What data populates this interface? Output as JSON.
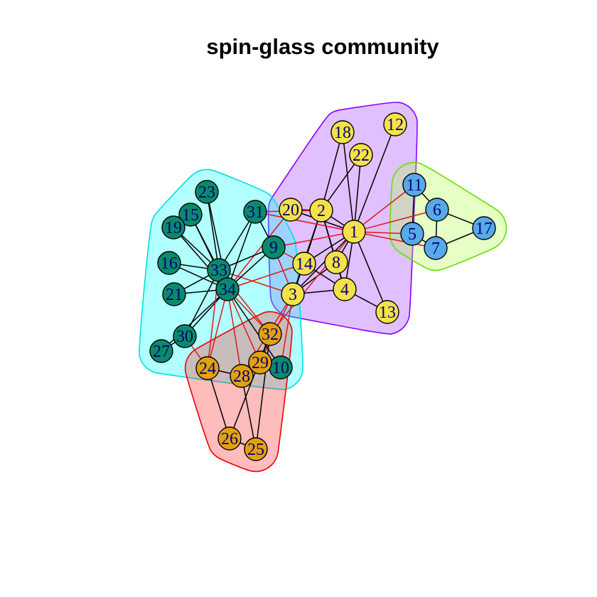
{
  "title": "spin-glass community",
  "colors": {
    "yellow": "#f5e14a",
    "teal": "#0a8a6a",
    "blue": "#58a9e8",
    "orange": "#e4a010",
    "intra_edge": "#000000",
    "inter_edge": "#e0171b"
  },
  "communities": [
    {
      "name": "community-purple",
      "fill": "#9b30ff",
      "stroke": "#8a00ff",
      "members": [
        1,
        2,
        3,
        4,
        8,
        12,
        13,
        14,
        18,
        20,
        22
      ]
    },
    {
      "name": "community-green",
      "fill": "#a8ff40",
      "stroke": "#66e000",
      "members": [
        5,
        6,
        7,
        11,
        17
      ]
    },
    {
      "name": "community-cyan",
      "fill": "#00ffff",
      "stroke": "#00e0e0",
      "members": [
        9,
        10,
        15,
        16,
        19,
        21,
        23,
        27,
        30,
        31,
        33,
        34
      ]
    },
    {
      "name": "community-red",
      "fill": "#ff2020",
      "stroke": "#ee0000",
      "members": [
        24,
        25,
        26,
        28,
        29,
        32
      ]
    }
  ],
  "nodes": [
    {
      "id": 1,
      "label": "1",
      "color": "yellow"
    },
    {
      "id": 2,
      "label": "2",
      "color": "yellow"
    },
    {
      "id": 3,
      "label": "3",
      "color": "yellow"
    },
    {
      "id": 4,
      "label": "4",
      "color": "yellow"
    },
    {
      "id": 5,
      "label": "5",
      "color": "blue"
    },
    {
      "id": 6,
      "label": "6",
      "color": "blue"
    },
    {
      "id": 7,
      "label": "7",
      "color": "blue"
    },
    {
      "id": 8,
      "label": "8",
      "color": "yellow"
    },
    {
      "id": 9,
      "label": "9",
      "color": "teal"
    },
    {
      "id": 10,
      "label": "10",
      "color": "teal"
    },
    {
      "id": 11,
      "label": "11",
      "color": "blue"
    },
    {
      "id": 12,
      "label": "12",
      "color": "yellow"
    },
    {
      "id": 13,
      "label": "13",
      "color": "yellow"
    },
    {
      "id": 14,
      "label": "14",
      "color": "yellow"
    },
    {
      "id": 15,
      "label": "15",
      "color": "teal"
    },
    {
      "id": 16,
      "label": "16",
      "color": "teal"
    },
    {
      "id": 17,
      "label": "17",
      "color": "blue"
    },
    {
      "id": 18,
      "label": "18",
      "color": "yellow"
    },
    {
      "id": 19,
      "label": "19",
      "color": "teal"
    },
    {
      "id": 20,
      "label": "20",
      "color": "yellow"
    },
    {
      "id": 21,
      "label": "21",
      "color": "teal"
    },
    {
      "id": 22,
      "label": "22",
      "color": "yellow"
    },
    {
      "id": 23,
      "label": "23",
      "color": "teal"
    },
    {
      "id": 24,
      "label": "24",
      "color": "orange"
    },
    {
      "id": 25,
      "label": "25",
      "color": "orange"
    },
    {
      "id": 26,
      "label": "26",
      "color": "orange"
    },
    {
      "id": 27,
      "label": "27",
      "color": "teal"
    },
    {
      "id": 28,
      "label": "28",
      "color": "orange"
    },
    {
      "id": 29,
      "label": "29",
      "color": "orange"
    },
    {
      "id": 30,
      "label": "30",
      "color": "teal"
    },
    {
      "id": 31,
      "label": "31",
      "color": "teal"
    },
    {
      "id": 32,
      "label": "32",
      "color": "orange"
    },
    {
      "id": 33,
      "label": "33",
      "color": "teal"
    },
    {
      "id": 34,
      "label": "34",
      "color": "teal"
    }
  ],
  "edges": [
    [
      1,
      2
    ],
    [
      1,
      3
    ],
    [
      1,
      4
    ],
    [
      1,
      8
    ],
    [
      1,
      12
    ],
    [
      1,
      13
    ],
    [
      1,
      14
    ],
    [
      1,
      18
    ],
    [
      1,
      20
    ],
    [
      1,
      22
    ],
    [
      2,
      3
    ],
    [
      2,
      4
    ],
    [
      2,
      8
    ],
    [
      2,
      14
    ],
    [
      2,
      18
    ],
    [
      2,
      20
    ],
    [
      2,
      22
    ],
    [
      3,
      4
    ],
    [
      3,
      8
    ],
    [
      3,
      14
    ],
    [
      4,
      8
    ],
    [
      4,
      13
    ],
    [
      4,
      14
    ],
    [
      5,
      7
    ],
    [
      5,
      11
    ],
    [
      6,
      7
    ],
    [
      6,
      11
    ],
    [
      6,
      17
    ],
    [
      7,
      17
    ],
    [
      1,
      5
    ],
    [
      1,
      6
    ],
    [
      1,
      7
    ],
    [
      1,
      11
    ],
    [
      1,
      9
    ],
    [
      1,
      31
    ],
    [
      1,
      32
    ],
    [
      2,
      31
    ],
    [
      3,
      9
    ],
    [
      3,
      10
    ],
    [
      3,
      28
    ],
    [
      3,
      29
    ],
    [
      3,
      33
    ],
    [
      9,
      14
    ],
    [
      14,
      34
    ],
    [
      20,
      34
    ],
    [
      9,
      31
    ],
    [
      9,
      33
    ],
    [
      9,
      34
    ],
    [
      10,
      34
    ],
    [
      15,
      33
    ],
    [
      15,
      34
    ],
    [
      16,
      33
    ],
    [
      16,
      34
    ],
    [
      19,
      33
    ],
    [
      19,
      34
    ],
    [
      21,
      33
    ],
    [
      21,
      34
    ],
    [
      23,
      33
    ],
    [
      23,
      34
    ],
    [
      27,
      30
    ],
    [
      27,
      34
    ],
    [
      30,
      33
    ],
    [
      30,
      34
    ],
    [
      31,
      33
    ],
    [
      31,
      34
    ],
    [
      33,
      34
    ],
    [
      24,
      26
    ],
    [
      24,
      28
    ],
    [
      25,
      26
    ],
    [
      25,
      28
    ],
    [
      25,
      32
    ],
    [
      26,
      32
    ],
    [
      28,
      29
    ],
    [
      29,
      32
    ],
    [
      29,
      34
    ],
    [
      24,
      33
    ],
    [
      24,
      34
    ],
    [
      24,
      30
    ],
    [
      28,
      34
    ],
    [
      32,
      33
    ],
    [
      32,
      34
    ]
  ]
}
